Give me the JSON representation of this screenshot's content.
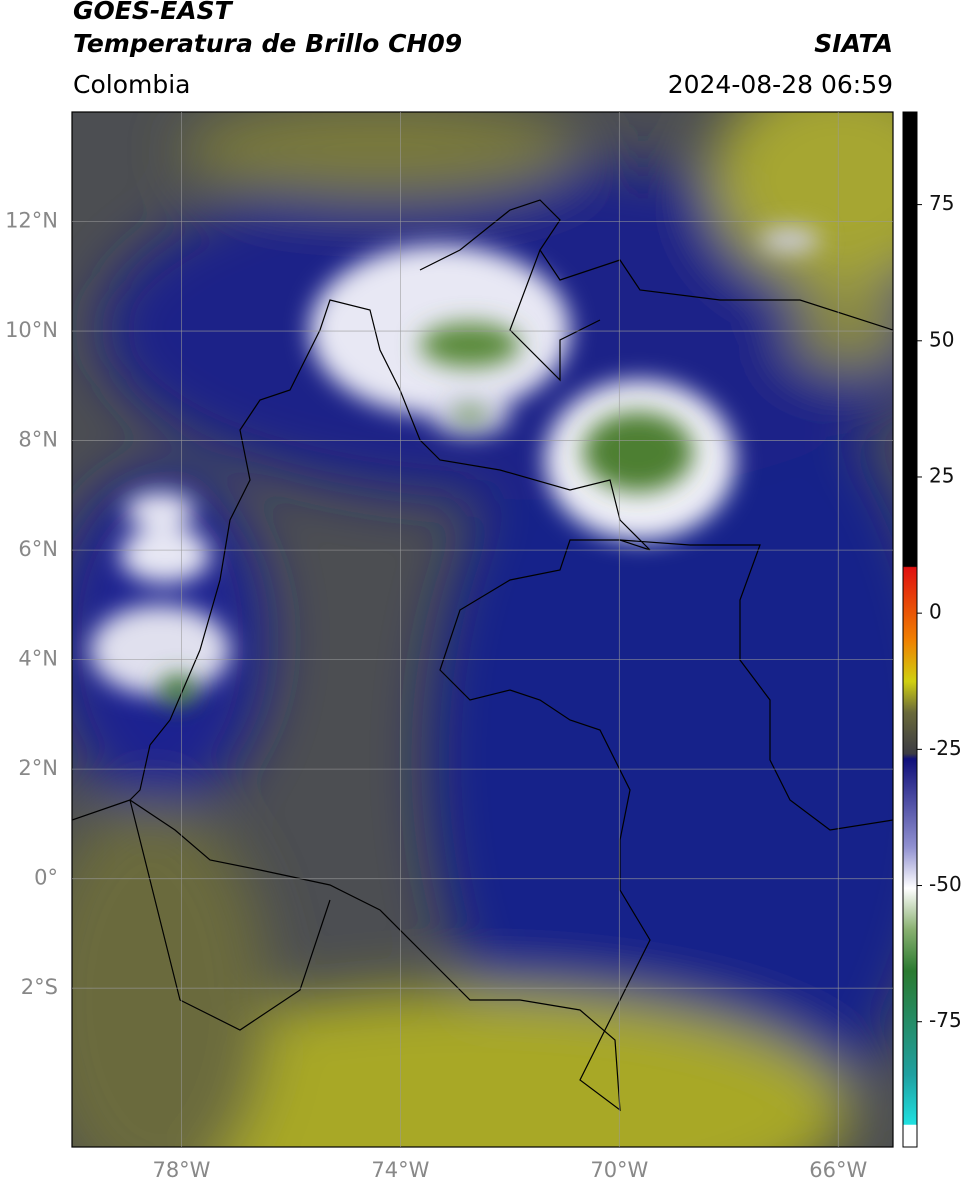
{
  "header": {
    "title": "GOES-EAST",
    "subtitle": "Temperatura de Brillo CH09",
    "source": "SIATA",
    "region": "Colombia",
    "timestamp": "2024-08-28 06:59"
  },
  "map": {
    "lonlim": [
      -80,
      -65
    ],
    "latlim": [
      -4.9,
      14
    ],
    "lat_ticks": [
      {
        "value": 12,
        "label": "12°N"
      },
      {
        "value": 10,
        "label": "10°N"
      },
      {
        "value": 8,
        "label": "8°N"
      },
      {
        "value": 6,
        "label": "6°N"
      },
      {
        "value": 4,
        "label": "4°N"
      },
      {
        "value": 2,
        "label": "2°N"
      },
      {
        "value": 0,
        "label": "0°"
      },
      {
        "value": -2,
        "label": "2°S"
      }
    ],
    "lon_ticks": [
      {
        "value": -78,
        "label": "78°W"
      },
      {
        "value": -74,
        "label": "74°W"
      },
      {
        "value": -70,
        "label": "70°W"
      },
      {
        "value": -66,
        "label": "66°W"
      }
    ]
  },
  "colorbar": {
    "lim": [
      -98,
      92
    ],
    "ticks": [
      75,
      50,
      25,
      0,
      -25,
      -50,
      -75
    ]
  }
}
